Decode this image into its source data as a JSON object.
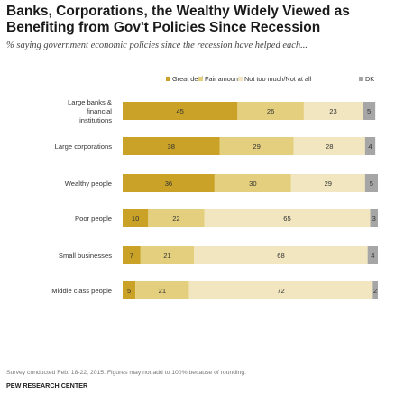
{
  "title": "Banks, Corporations, the Wealthy Widely Viewed as Benefiting from Gov't Policies Since Recession",
  "subtitle": "% saying government economic policies since the recession have helped each...",
  "footnote": "Survey conducted Feb. 18-22, 2015. Figures may not add to 100% because of rounding.",
  "source": "PEW RESEARCH CENTER",
  "chart_data": {
    "type": "bar",
    "stacked": true,
    "orientation": "horizontal",
    "legend_position": "top",
    "categories": [
      "Large banks & financial institutions",
      "Large corporations",
      "Wealthy people",
      "Poor people",
      "Small businesses",
      "Middle class people"
    ],
    "series": [
      {
        "name": "Great deal",
        "color": "#c9a227",
        "values": [
          45,
          38,
          36,
          10,
          7,
          5
        ]
      },
      {
        "name": "Fair amount",
        "color": "#e3cf7d",
        "values": [
          26,
          29,
          30,
          22,
          21,
          21
        ]
      },
      {
        "name": "Not too much/Not at all",
        "color": "#f1e6bf",
        "values": [
          23,
          28,
          29,
          65,
          68,
          72
        ]
      },
      {
        "name": "DK",
        "color": "#a6a6a6",
        "values": [
          5,
          4,
          5,
          3,
          4,
          2
        ]
      }
    ]
  }
}
